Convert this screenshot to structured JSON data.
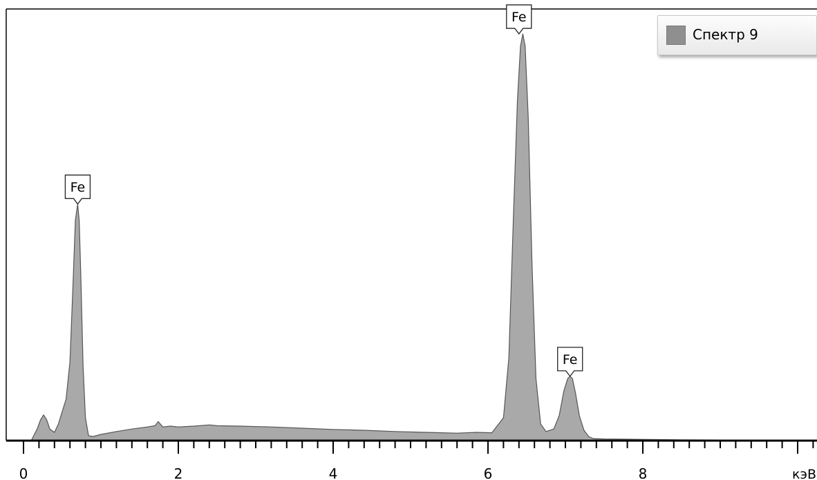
{
  "chart_data": {
    "type": "area",
    "xlabel": "кэВ",
    "ylabel": "",
    "xlim": [
      -0.25,
      10.1
    ],
    "ylim": [
      0,
      1.04
    ],
    "x_ticks": [
      "0",
      "2",
      "4",
      "6",
      "8"
    ],
    "x_tick_values": [
      0,
      2,
      4,
      6,
      8
    ],
    "grid": false,
    "legend_position": "top-right",
    "series": [
      {
        "name": "Спектр 9",
        "color": "#a9a9a9",
        "x": [
          0.1,
          0.18,
          0.22,
          0.26,
          0.3,
          0.34,
          0.4,
          0.45,
          0.5,
          0.55,
          0.6,
          0.64,
          0.67,
          0.7,
          0.72,
          0.74,
          0.77,
          0.8,
          0.84,
          0.9,
          1.0,
          1.2,
          1.4,
          1.6,
          1.7,
          1.74,
          1.8,
          1.9,
          2.0,
          2.2,
          2.4,
          2.5,
          2.8,
          3.2,
          3.6,
          4.0,
          4.4,
          4.8,
          5.2,
          5.6,
          5.85,
          6.05,
          6.2,
          6.27,
          6.33,
          6.38,
          6.42,
          6.45,
          6.48,
          6.52,
          6.57,
          6.62,
          6.68,
          6.75,
          6.85,
          6.92,
          6.98,
          7.03,
          7.06,
          7.09,
          7.13,
          7.18,
          7.24,
          7.3,
          7.36,
          7.5,
          8.0,
          8.5,
          9.0,
          9.5,
          10.1
        ],
        "values": [
          0.0,
          0.03,
          0.05,
          0.062,
          0.05,
          0.028,
          0.02,
          0.04,
          0.07,
          0.1,
          0.19,
          0.38,
          0.53,
          0.57,
          0.53,
          0.4,
          0.18,
          0.055,
          0.012,
          0.01,
          0.015,
          0.022,
          0.028,
          0.033,
          0.036,
          0.046,
          0.033,
          0.035,
          0.033,
          0.035,
          0.038,
          0.036,
          0.035,
          0.033,
          0.03,
          0.027,
          0.025,
          0.022,
          0.02,
          0.018,
          0.02,
          0.019,
          0.055,
          0.2,
          0.55,
          0.82,
          0.95,
          0.98,
          0.95,
          0.78,
          0.42,
          0.15,
          0.04,
          0.022,
          0.028,
          0.06,
          0.12,
          0.15,
          0.155,
          0.15,
          0.115,
          0.06,
          0.025,
          0.01,
          0.005,
          0.004,
          0.003,
          0.002,
          0.0015,
          0.001,
          0.001
        ]
      }
    ],
    "annotations": [
      {
        "text": "Fe",
        "x": 0.7,
        "y": 0.57
      },
      {
        "text": "Fe",
        "x": 6.4,
        "y": 0.98
      },
      {
        "text": "Fe",
        "x": 7.06,
        "y": 0.155
      }
    ]
  }
}
